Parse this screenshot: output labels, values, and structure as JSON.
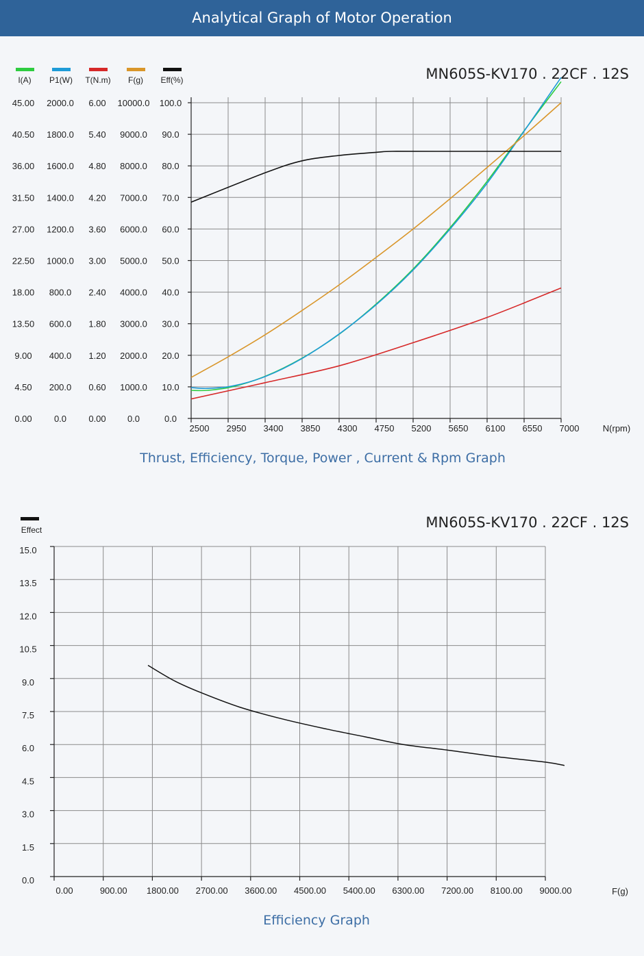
{
  "header": {
    "title": "Analytical Graph of Motor Operation"
  },
  "colors": {
    "banner": "#2f6399",
    "caption": "#3d6ea5",
    "I": "#2ecc40",
    "P1": "#1e9bd7",
    "T": "#d62828",
    "F": "#d9962a",
    "Eff": "#111111"
  },
  "chart_data": [
    {
      "type": "line",
      "model": "MN605S-KV170 . 22CF . 12S",
      "caption": "Thrust, Efficiency, Torque, Power , Current & Rpm Graph",
      "xlabel": "N(rpm)",
      "x_ticks": [
        "2500",
        "2950",
        "3400",
        "3850",
        "4300",
        "4750",
        "5200",
        "5650",
        "6100",
        "6550",
        "7000"
      ],
      "xlim": [
        2500,
        7000
      ],
      "grid": true,
      "axes": [
        {
          "key": "I",
          "label": "I(A)",
          "color": "#2ecc40",
          "max": 45,
          "ticks": [
            "0.00",
            "4.50",
            "9.00",
            "13.50",
            "18.00",
            "22.50",
            "27.00",
            "31.50",
            "36.00",
            "40.50",
            "45.00"
          ]
        },
        {
          "key": "P1",
          "label": "P1(W)",
          "color": "#1e9bd7",
          "max": 2000,
          "ticks": [
            "0.0",
            "200.0",
            "400.0",
            "600.0",
            "800.0",
            "1000.0",
            "1200.0",
            "1400.0",
            "1600.0",
            "1800.0",
            "2000.0"
          ]
        },
        {
          "key": "T",
          "label": "T(N.m)",
          "color": "#d62828",
          "max": 6,
          "ticks": [
            "0.00",
            "0.60",
            "1.20",
            "1.80",
            "2.40",
            "3.00",
            "3.60",
            "4.20",
            "4.80",
            "5.40",
            "6.00"
          ]
        },
        {
          "key": "F",
          "label": "F(g)",
          "color": "#d9962a",
          "max": 10000,
          "ticks": [
            "0.0",
            "1000.0",
            "2000.0",
            "3000.0",
            "4000.0",
            "5000.0",
            "6000.0",
            "7000.0",
            "8000.0",
            "9000.0",
            "10000.0"
          ]
        },
        {
          "key": "Eff",
          "label": "Eff(%)",
          "color": "#111111",
          "max": 100,
          "ticks": [
            "0.0",
            "10.0",
            "20.0",
            "30.0",
            "40.0",
            "50.0",
            "60.0",
            "70.0",
            "80.0",
            "90.0",
            "100.0"
          ]
        }
      ],
      "series": [
        {
          "key": "I",
          "axis": 0,
          "x": [
            2500,
            2700,
            3000,
            3400,
            3850,
            4300,
            4750,
            5200,
            5650,
            6100,
            6550,
            7000
          ],
          "y": [
            4.0,
            4.0,
            4.5,
            6.0,
            8.6,
            12.0,
            16.3,
            21.3,
            27.2,
            33.8,
            41.0,
            48.0
          ]
        },
        {
          "key": "P1",
          "axis": 1,
          "x": [
            2500,
            2700,
            3000,
            3400,
            3850,
            4300,
            4750,
            5200,
            5650,
            6100,
            6550,
            7000
          ],
          "y": [
            195,
            190,
            205,
            265,
            380,
            535,
            720,
            940,
            1200,
            1490,
            1820,
            2160
          ]
        },
        {
          "key": "T",
          "axis": 2,
          "x": [
            2500,
            3400,
            4300,
            5200,
            6100,
            7000
          ],
          "y": [
            0.37,
            0.68,
            1.0,
            1.44,
            1.92,
            2.48
          ]
        },
        {
          "key": "F",
          "axis": 3,
          "x": [
            2500,
            2950,
            3400,
            3850,
            4300,
            4750,
            5200,
            5650,
            6100,
            6550,
            7000
          ],
          "y": [
            1300,
            1950,
            2650,
            3420,
            4230,
            5100,
            6000,
            6960,
            7950,
            8960,
            10000
          ]
        },
        {
          "key": "Eff",
          "axis": 4,
          "x": [
            2500,
            3400,
            3850,
            4300,
            4750,
            4950,
            5500,
            7000
          ],
          "y": [
            68.5,
            77.8,
            81.6,
            83.3,
            84.3,
            84.6,
            84.6,
            84.6
          ]
        }
      ]
    },
    {
      "type": "line",
      "model": "MN605S-KV170 . 22CF . 12S",
      "caption": "Efficiency Graph",
      "legend_label": "Effect",
      "xlabel": "F(g)",
      "x_ticks": [
        "0.00",
        "900.00",
        "1800.00",
        "2700.00",
        "3600.00",
        "4500.00",
        "5400.00",
        "6300.00",
        "7200.00",
        "8100.00",
        "9000.00"
      ],
      "y_ticks": [
        "0.0",
        "1.5",
        "3.0",
        "4.5",
        "6.0",
        "7.5",
        "9.0",
        "10.5",
        "12.0",
        "13.5",
        "15.0"
      ],
      "xlim": [
        0,
        9000
      ],
      "ylim": [
        0,
        15
      ],
      "grid": true,
      "series": [
        {
          "key": "Effect",
          "color": "#111111",
          "x": [
            1720,
            2200,
            2700,
            3400,
            4200,
            5000,
            5700,
            6400,
            7200,
            8100,
            9000,
            9350
          ],
          "y": [
            9.6,
            8.9,
            8.35,
            7.7,
            7.15,
            6.7,
            6.35,
            6.0,
            5.75,
            5.45,
            5.2,
            5.05
          ]
        }
      ]
    }
  ]
}
